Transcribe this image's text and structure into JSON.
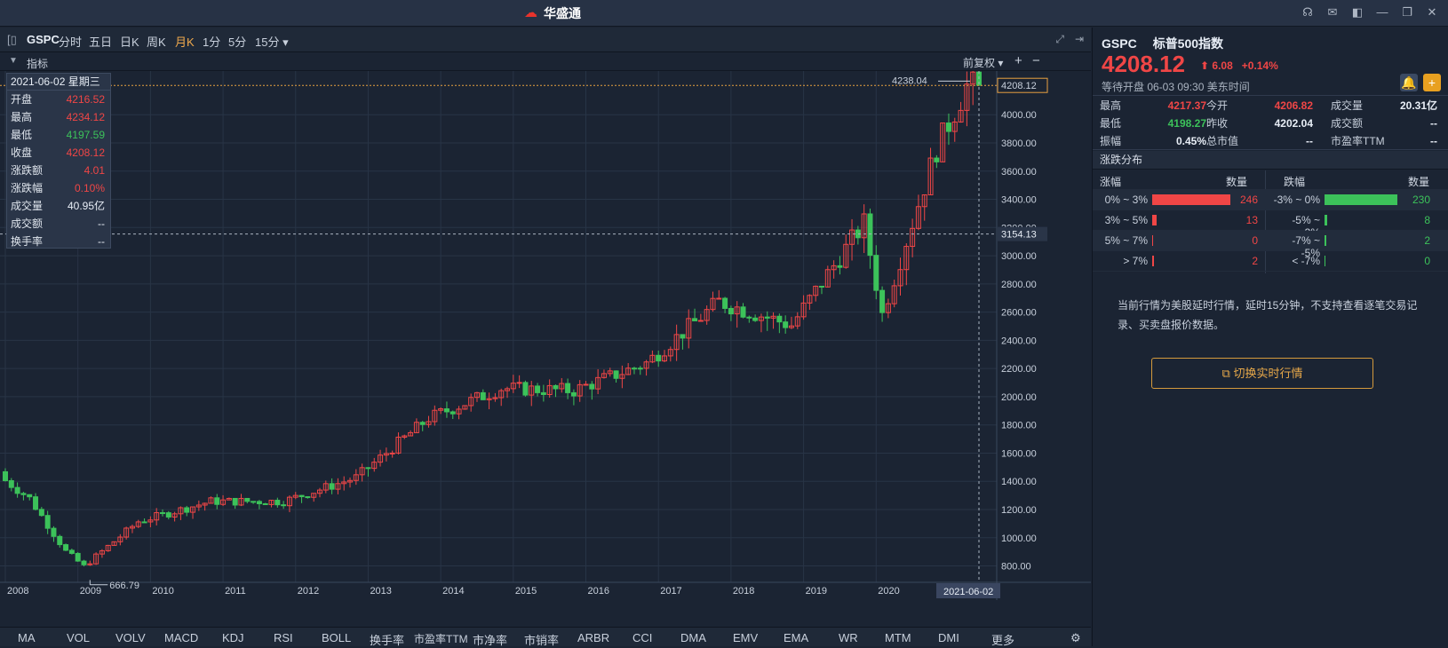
{
  "app": {
    "logo": "华盛通"
  },
  "toolbar": {
    "symbol": "GSPC",
    "periods": [
      "分时",
      "五日",
      "日K",
      "周K",
      "月K",
      "1分",
      "5分",
      "15分 ▾"
    ],
    "active": "月K"
  },
  "indicator_bar": {
    "label": "指标",
    "adjust": "前复权 ▾",
    "plus": "+",
    "minus": "−"
  },
  "tooltip": {
    "date": "2021-06-02 星期三",
    "rows": [
      {
        "k": "开盘",
        "v": "4216.52",
        "c": "red"
      },
      {
        "k": "最高",
        "v": "4234.12",
        "c": "red"
      },
      {
        "k": "最低",
        "v": "4197.59",
        "c": "green"
      },
      {
        "k": "收盘",
        "v": "4208.12",
        "c": "red"
      },
      {
        "k": "涨跌额",
        "v": "4.01",
        "c": "red"
      },
      {
        "k": "涨跌幅",
        "v": "0.10%",
        "c": "red"
      },
      {
        "k": "成交量",
        "v": "40.95亿",
        "c": "white"
      },
      {
        "k": "成交额",
        "v": "--",
        "c": "white"
      },
      {
        "k": "换手率",
        "v": "--",
        "c": "white"
      }
    ]
  },
  "chart_data": {
    "type": "candlestick",
    "title": "",
    "y_ticks": [
      800,
      1000,
      1200,
      1400,
      1600,
      1800,
      2000,
      2200,
      2400,
      2600,
      2800,
      3000,
      3200,
      3400,
      3600,
      3800,
      4000
    ],
    "y_tick_labels": [
      "800.00",
      "1000.00",
      "1200.00",
      "1400.00",
      "1600.00",
      "1800.00",
      "2000.00",
      "2200.00",
      "2400.00",
      "2600.00",
      "2800.00",
      "3000.00",
      "3200.00",
      "3400.00",
      "3600.00",
      "3800.00",
      "4000.00"
    ],
    "x_ticks": [
      "2008",
      "2009",
      "2010",
      "2011",
      "2012",
      "2013",
      "2014",
      "2015",
      "2016",
      "2017",
      "2018",
      "2019",
      "2020"
    ],
    "ylim": [
      690,
      4310
    ],
    "xlim": [
      "2008-01",
      "2021-06"
    ],
    "current_price_label": "4208.12",
    "crosshair_label": "3154.13",
    "crosshair_date": "2021-06-02",
    "max_label": "4238.04",
    "min_label": "666.79",
    "annual_closes": {
      "2007-12": 1468,
      "2008-06": 1280,
      "2008-12": 903,
      "2009-03": 797,
      "2009-12": 1115,
      "2010-12": 1258,
      "2011-12": 1258,
      "2012-12": 1426,
      "2013-12": 1848,
      "2014-12": 2059,
      "2015-12": 2044,
      "2016-12": 2239,
      "2017-12": 2674,
      "2018-12": 2507,
      "2019-12": 3231,
      "2020-03": 2585,
      "2020-12": 3756,
      "2021-05": 4204,
      "2021-06": 4208
    }
  },
  "bottom_indicators": [
    "MA",
    "VOL",
    "VOLV",
    "MACD",
    "KDJ",
    "RSI",
    "BOLL",
    "换手率",
    "市盈率TTM",
    "市净率",
    "市销率",
    "ARBR",
    "CCI",
    "DMA",
    "EMV",
    "EMA",
    "WR",
    "MTM",
    "DMI",
    "更多"
  ],
  "side": {
    "code": "GSPC",
    "name": "标普500指数",
    "price": "4208.12",
    "change": "6.08",
    "change_pct": "+0.14%",
    "status": "等待开盘 06-03 09:30 美东时间",
    "quote": [
      [
        {
          "k": "最高",
          "v": "4217.37",
          "c": "red"
        },
        {
          "k": "今开",
          "v": "4206.82",
          "c": "red"
        },
        {
          "k": "成交量",
          "v": "20.31亿",
          "c": "white"
        }
      ],
      [
        {
          "k": "最低",
          "v": "4198.27",
          "c": "green"
        },
        {
          "k": "昨收",
          "v": "4202.04",
          "c": "white"
        },
        {
          "k": "成交额",
          "v": "--",
          "c": "white"
        }
      ],
      [
        {
          "k": "振幅",
          "v": "0.45%",
          "c": "white"
        },
        {
          "k": "总市值",
          "v": "--",
          "c": "white"
        },
        {
          "k": "市盈率TTM",
          "v": "--",
          "c": "white"
        }
      ]
    ],
    "dist_title": "涨跌分布",
    "dist_header": {
      "up": "涨幅",
      "up_n": "数量",
      "down": "跌幅",
      "down_n": "数量"
    },
    "dist": [
      {
        "up": "0% ~ 3%",
        "up_n": 246,
        "down": "-3% ~ 0%",
        "down_n": 230
      },
      {
        "up": "3% ~ 5%",
        "up_n": 13,
        "down": "-5% ~ -3%",
        "down_n": 8
      },
      {
        "up": "5% ~ 7%",
        "up_n": 0,
        "down": "-7% ~ -5%",
        "down_n": 2
      },
      {
        "up": "> 7%",
        "up_n": 2,
        "down": "< -7%",
        "down_n": 0
      }
    ],
    "note": "当前行情为美股延时行情，延时15分钟，不支持查看逐笔交易记录、买卖盘报价数据。",
    "switch_btn": "切换实时行情"
  }
}
